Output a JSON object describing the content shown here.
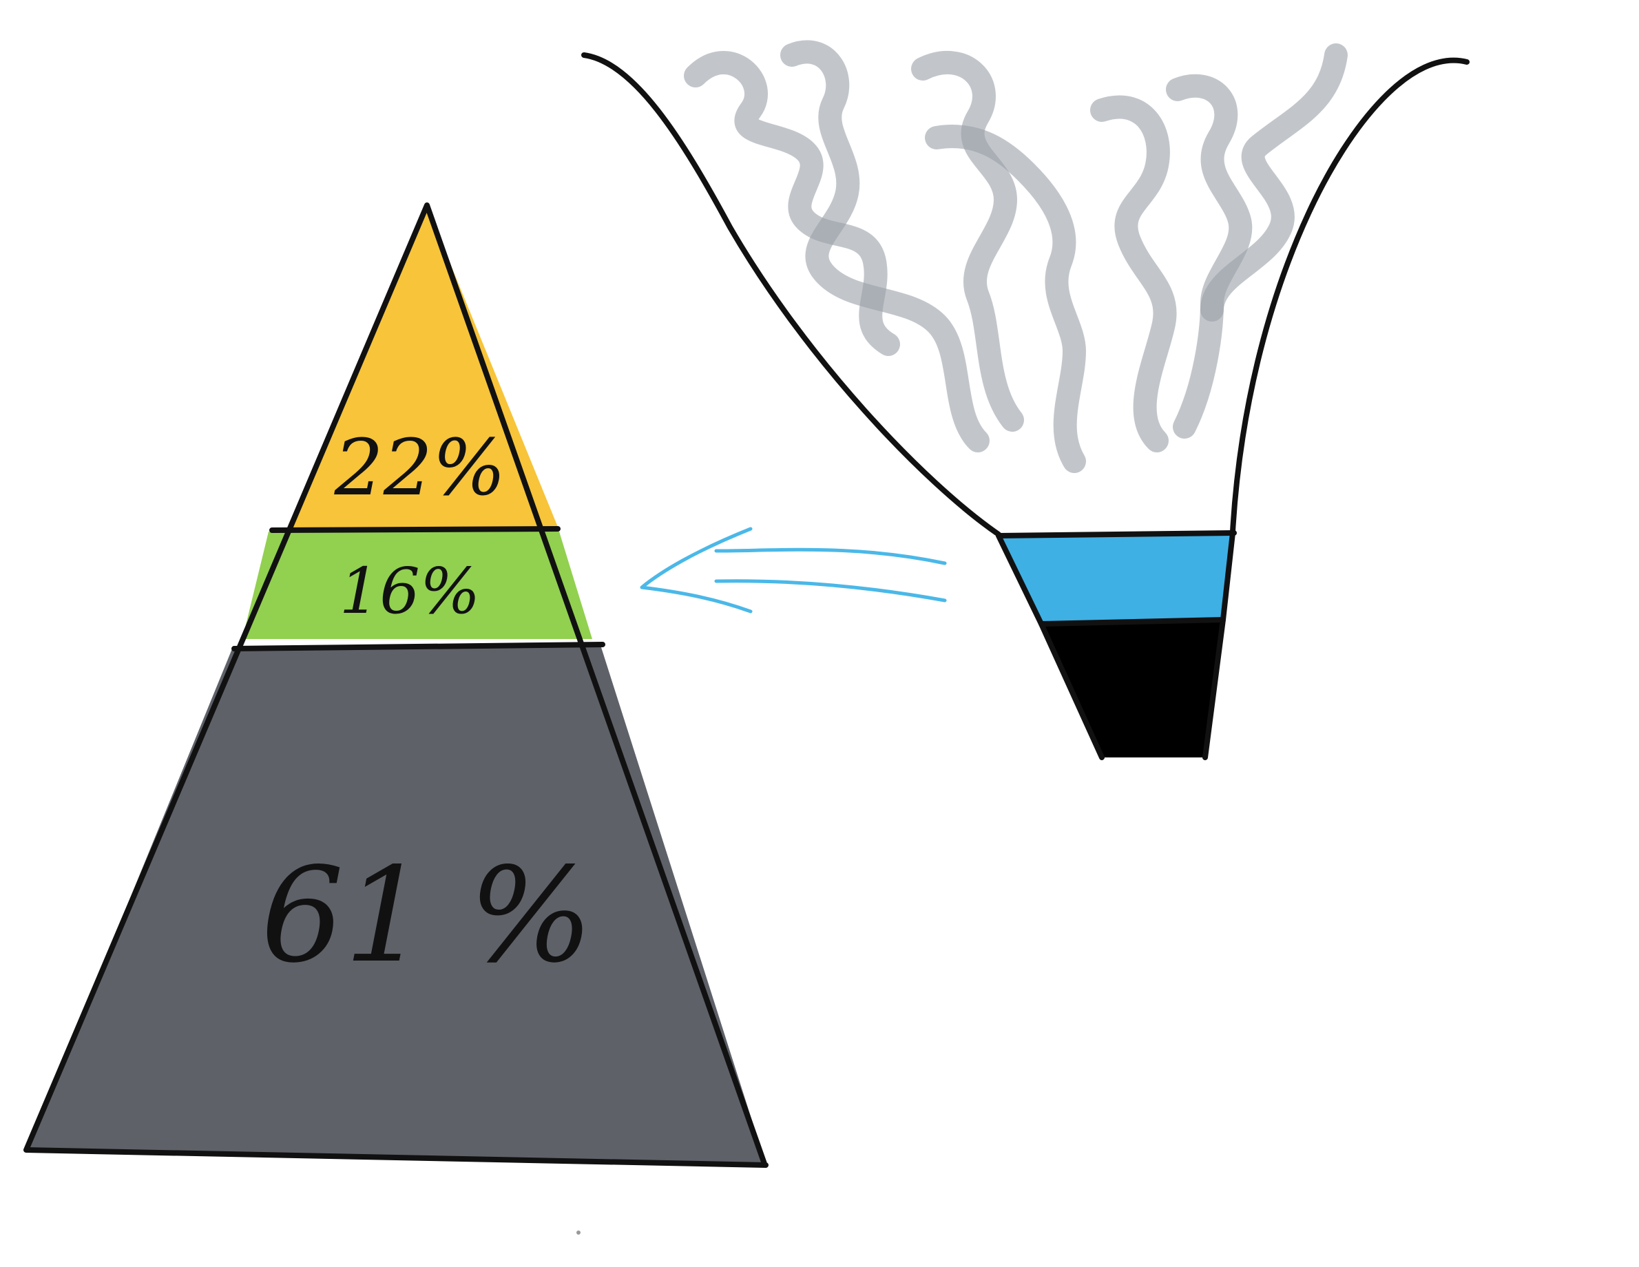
{
  "pyramid": {
    "segments": [
      {
        "id": "top",
        "label": "22%",
        "value": 22,
        "color": "#f7c43a"
      },
      {
        "id": "middle",
        "label": "16%",
        "value": 16,
        "color": "#92d050"
      },
      {
        "id": "bottom",
        "label": "61 %",
        "value": 61,
        "color": "#5e6168"
      }
    ]
  },
  "funnel": {
    "layers": [
      {
        "id": "smoke",
        "color": "#9aa0a8"
      },
      {
        "id": "blue-band",
        "color": "#3fb0e4"
      },
      {
        "id": "black-band",
        "color": "#000000"
      }
    ]
  },
  "arrow": {
    "color": "#4ab8e8",
    "direction": "left"
  }
}
